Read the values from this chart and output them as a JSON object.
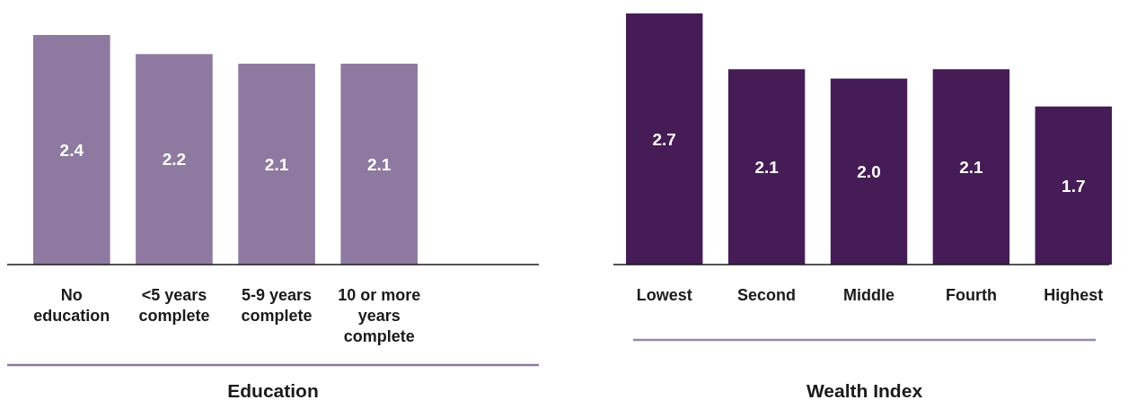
{
  "chart_data": [
    {
      "type": "bar",
      "categories": [
        "No education",
        "<5 years complete",
        "5-9 years complete",
        "10 or more years complete"
      ],
      "values": [
        2.4,
        2.2,
        2.1,
        2.1
      ],
      "value_labels": [
        "2.4",
        "2.2",
        "2.1",
        "2.1"
      ],
      "color": "#8e7aa0",
      "xlabel": "Education"
    },
    {
      "type": "bar",
      "categories": [
        "Lowest",
        "Second",
        "Middle",
        "Fourth",
        "Highest"
      ],
      "values": [
        2.7,
        2.1,
        2.0,
        2.1,
        1.7
      ],
      "value_labels": [
        "2.7",
        "2.1",
        "2.0",
        "2.1",
        "1.7"
      ],
      "color": "#461c56",
      "xlabel": "Wealth Index"
    }
  ]
}
